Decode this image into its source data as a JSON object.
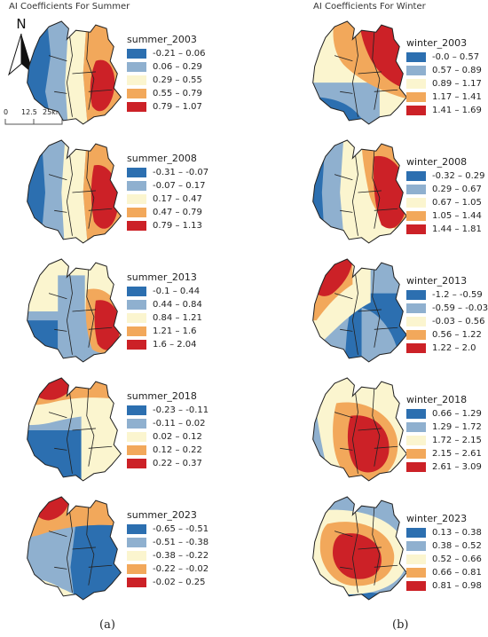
{
  "titles": {
    "summer": "AI Coefficients For Summer",
    "winter": "AI Coefficients For Winter"
  },
  "north_label": "N",
  "scale_labels": [
    "0",
    "12.5",
    "25km"
  ],
  "panel_labels": [
    "(a)",
    "(b)"
  ],
  "colors": [
    "#2c6fb0",
    "#8fb0cf",
    "#fbf5cf",
    "#f2a85b",
    "#cc2127"
  ],
  "summer": [
    {
      "name": "summer_2003",
      "classes": [
        "-0.21 – 0.06",
        "0.06 – 0.29",
        "0.29 – 0.55",
        "0.55 – 0.79",
        "0.79 – 1.07"
      ]
    },
    {
      "name": "summer_2008",
      "classes": [
        "-0.31 – -0.07",
        "-0.07 – 0.17",
        "0.17 – 0.47",
        "0.47 – 0.79",
        "0.79 – 1.13"
      ]
    },
    {
      "name": "summer_2013",
      "classes": [
        "-0.1 – 0.44",
        "0.44 – 0.84",
        "0.84 – 1.21",
        "1.21 – 1.6",
        "1.6 – 2.04"
      ]
    },
    {
      "name": "summer_2018",
      "classes": [
        "-0.23 – -0.11",
        "-0.11 – 0.02",
        "0.02 – 0.12",
        "0.12 – 0.22",
        "0.22 – 0.37"
      ]
    },
    {
      "name": "summer_2023",
      "classes": [
        "-0.65 – -0.51",
        "-0.51 – -0.38",
        "-0.38 – -0.22",
        "-0.22 – -0.02",
        "-0.02 – 0.25"
      ]
    }
  ],
  "winter": [
    {
      "name": "winter_2003",
      "classes": [
        "-0.0 – 0.57",
        "0.57 – 0.89",
        "0.89 – 1.17",
        "1.17 – 1.41",
        "1.41 – 1.69"
      ]
    },
    {
      "name": "winter_2008",
      "classes": [
        "-0.32 – 0.29",
        "0.29 – 0.67",
        "0.67 – 1.05",
        "1.05 – 1.44",
        "1.44 – 1.81"
      ]
    },
    {
      "name": "winter_2013",
      "classes": [
        "-1.2 – -0.59",
        "-0.59 – -0.03",
        "-0.03 – 0.56",
        "0.56 – 1.22",
        "1.22 – 2.0"
      ]
    },
    {
      "name": "winter_2018",
      "classes": [
        "0.66 – 1.29",
        "1.29 – 1.72",
        "1.72 – 2.15",
        "2.15 – 2.61",
        "2.61 – 3.09"
      ]
    },
    {
      "name": "winter_2023",
      "classes": [
        "0.13 – 0.38",
        "0.38 – 0.52",
        "0.52 – 0.66",
        "0.66 – 0.81",
        "0.81 – 0.98"
      ]
    }
  ]
}
